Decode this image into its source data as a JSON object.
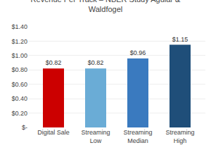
{
  "chart_data": {
    "type": "bar",
    "title": "Revenue Per Track – NBER Study Aguiar &\nWaldfogel",
    "categories": [
      "Digital Sale",
      "Streaming\nLow",
      "Streaming\nMedian",
      "Streaming\nHigh"
    ],
    "values": [
      0.82,
      0.82,
      0.96,
      1.15
    ],
    "value_labels": [
      "$0.82",
      "$0.82",
      "$0.96",
      "$1.15"
    ],
    "data_labels": true,
    "colors": [
      "#cc0000",
      "#6aacd6",
      "#3a7abf",
      "#1f4e79"
    ],
    "ylim": [
      0,
      1.4
    ],
    "yticks": [
      {
        "value": 0,
        "label": "$-"
      },
      {
        "value": 0.2,
        "label": "$0.20"
      },
      {
        "value": 0.4,
        "label": "$0.40"
      },
      {
        "value": 0.6,
        "label": "$0.60"
      },
      {
        "value": 0.8,
        "label": "$0.80"
      },
      {
        "value": 1.0,
        "label": "$1.00"
      },
      {
        "value": 1.2,
        "label": "$1.20"
      },
      {
        "value": 1.4,
        "label": "$1.40"
      }
    ],
    "grid": true
  }
}
